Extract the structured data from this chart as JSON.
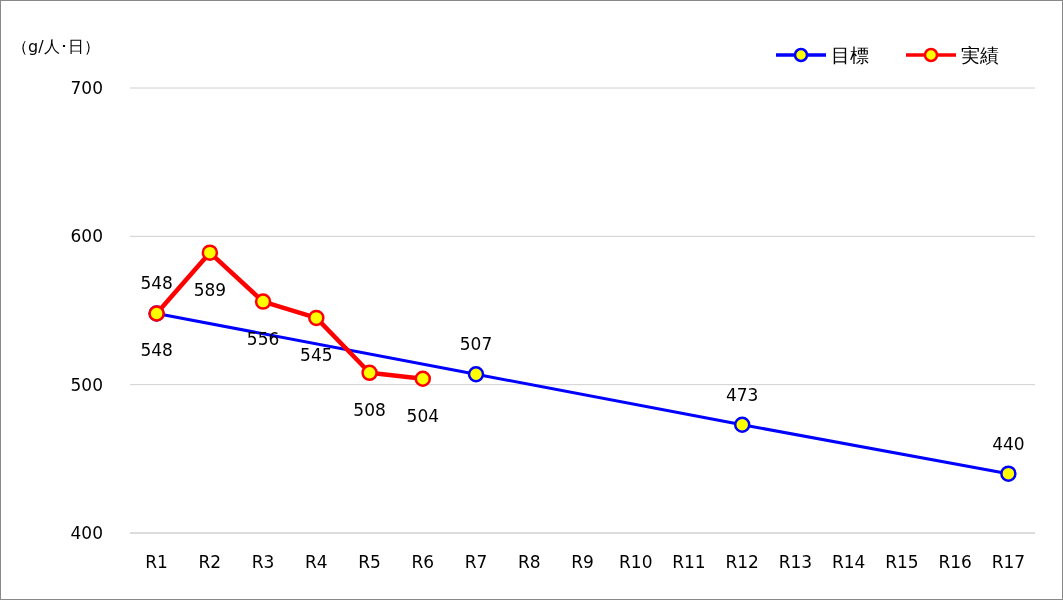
{
  "chart_data": {
    "type": "line",
    "ylabel": "（g/人･日）",
    "categories": [
      "R1",
      "R2",
      "R3",
      "R4",
      "R5",
      "R6",
      "R7",
      "R8",
      "R9",
      "R10",
      "R11",
      "R12",
      "R13",
      "R14",
      "R15",
      "R16",
      "R17"
    ],
    "series": [
      {
        "name": "目標",
        "color": "#0000ff",
        "x": [
          "R1",
          "R7",
          "R12",
          "R17"
        ],
        "values": [
          548,
          507,
          473,
          440
        ]
      },
      {
        "name": "実績",
        "color": "#ff0000",
        "x": [
          "R1",
          "R2",
          "R3",
          "R4",
          "R5",
          "R6"
        ],
        "values": [
          548,
          589,
          556,
          545,
          508,
          504
        ]
      }
    ],
    "ylim": [
      400,
      700
    ],
    "yticks": [
      400,
      500,
      600,
      700
    ],
    "grid": "y",
    "legend": "top right",
    "marker": "circle",
    "line_style": "solid",
    "data_labels": true
  }
}
